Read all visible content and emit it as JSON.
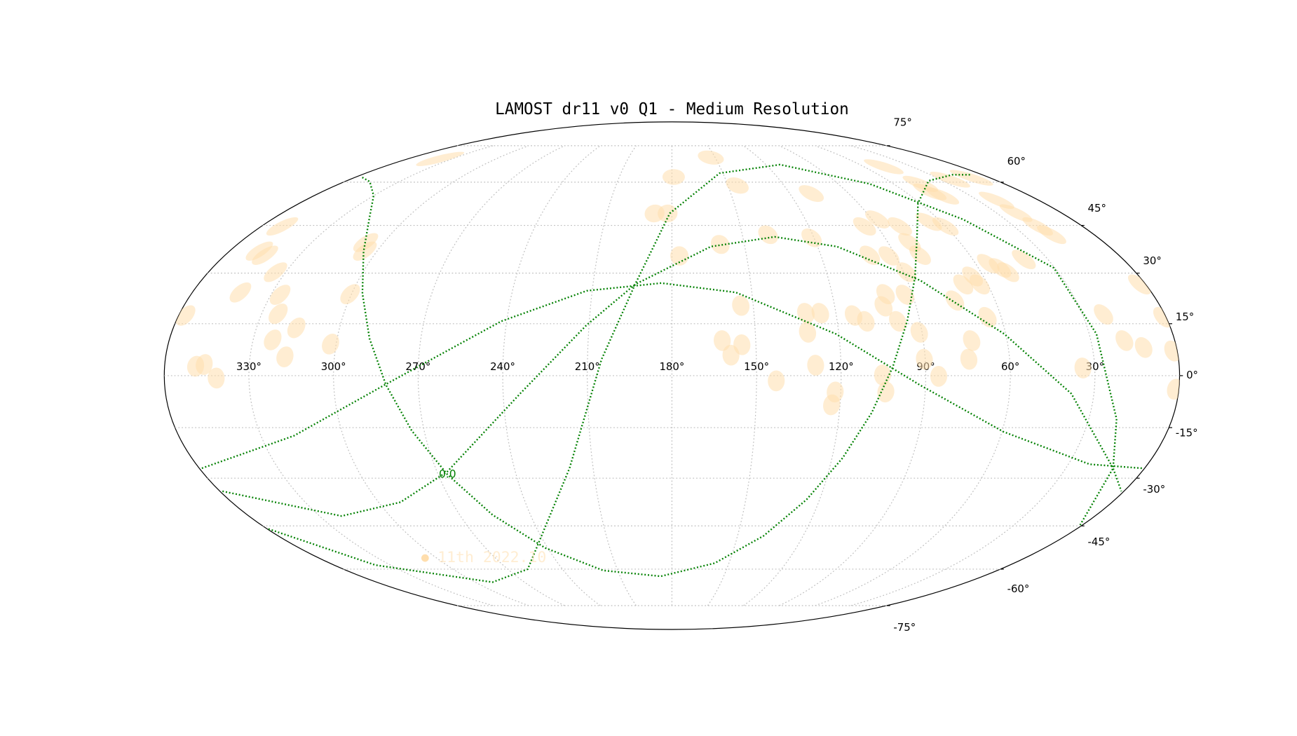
{
  "chart_data": {
    "type": "mollweide",
    "title": "LAMOST dr11 v0 Q1 - Medium Resolution",
    "xlim": [
      360,
      0
    ],
    "ylim": [
      -90,
      90
    ],
    "xticks": [
      {
        "value": 330,
        "label": "330°"
      },
      {
        "value": 300,
        "label": "300°"
      },
      {
        "value": 270,
        "label": "270°"
      },
      {
        "value": 240,
        "label": "240°"
      },
      {
        "value": 210,
        "label": "210°"
      },
      {
        "value": 180,
        "label": "180°"
      },
      {
        "value": 150,
        "label": "150°"
      },
      {
        "value": 120,
        "label": "120°"
      },
      {
        "value": 90,
        "label": "90°"
      },
      {
        "value": 60,
        "label": "60°"
      },
      {
        "value": 30,
        "label": "30°"
      }
    ],
    "yticks": [
      {
        "value": -75,
        "label": "-75°"
      },
      {
        "value": -60,
        "label": "-60°"
      },
      {
        "value": -45,
        "label": "-45°"
      },
      {
        "value": -30,
        "label": "-30°"
      },
      {
        "value": -15,
        "label": "-15°"
      },
      {
        "value": 0,
        "label": "0°"
      },
      {
        "value": 15,
        "label": "15°"
      },
      {
        "value": 30,
        "label": "30°"
      },
      {
        "value": 45,
        "label": "45°"
      },
      {
        "value": 60,
        "label": "60°"
      },
      {
        "value": 75,
        "label": "75°"
      }
    ],
    "grid": true,
    "legend": "lower left",
    "series": [
      {
        "name": "11th 2022.10",
        "color": "#ffdead",
        "x": [
          357.6,
          349,
          346,
          341.6,
          342,
          348,
          344,
          334,
          326.6,
          324,
          323,
          317.6,
          315.6,
          351,
          302,
          300.5,
          307.6,
          305,
          179,
          153,
          145,
          188,
          182,
          160,
          177,
          139,
          109,
          121,
          154.6,
          162,
          155,
          159,
          143,
          131,
          125.7,
          131.2,
          129,
          122,
          123,
          113.7,
          109.6,
          95.5,
          87.5,
          100.3,
          92.7,
          100,
          102,
          92.8,
          98,
          91,
          105.3,
          104,
          90.3,
          85.4,
          81,
          89,
          80,
          80,
          47.2,
          44,
          60,
          65.4,
          75,
          69.3,
          64.2,
          63,
          55,
          51.5,
          49.4,
          72.7,
          74.5,
          65,
          39.6,
          18,
          19.5,
          21,
          20.6,
          24.4,
          10,
          22.3,
          18,
          11.7,
          1.5,
          1,
          2.2,
          1.2,
          34.2,
          338.5,
          47.4,
          45.3
        ],
        "y": [
          17.4,
          2.7,
          3.2,
          -0.7,
          24.2,
          36.8,
          35.5,
          30.3,
          23.5,
          17.9,
          10.3,
          5.4,
          13.8,
          44.7,
          9.1,
          23.7,
          39.5,
          36.8,
          62,
          69.8,
          58.8,
          49,
          49,
          38.9,
          35.3,
          42,
          55.9,
          41,
          20.3,
          10.1,
          8.9,
          5.9,
          -1.5,
          18.1,
          18.1,
          12.5,
          3,
          -4.7,
          -8.4,
          17.4,
          15.7,
          44.7,
          47,
          35.5,
          35.3,
          23.7,
          20.1,
          23.5,
          15.7,
          12.5,
          0.2,
          -4.7,
          4.7,
          -0.2,
          39.5,
          30.3,
          44.7,
          35.5,
          56.5,
          55,
          44.7,
          46.2,
          21.8,
          26.6,
          29,
          26.6,
          32.9,
          31.6,
          30.3,
          10.1,
          4.7,
          16.9,
          34.2,
          42,
          44.7,
          49.1,
          53.5,
          61,
          61.7,
          17.7,
          10.1,
          8.1,
          7.1,
          16.9,
          26.6,
          -3.9,
          2.2,
          69.2,
          66,
          59.4
        ]
      }
    ],
    "lines": [
      {
        "color": "green",
        "x": [
          355.9,
          346.2,
          330,
          318.1,
          305.3,
          296,
          288.4,
          281.5,
          274.5,
          266.4,
          256.1,
          241.2,
          218,
          186.5,
          157.5,
          138.1,
          125.3,
          116,
          108.4,
          101.6,
          94.5,
          86.4,
          76.1,
          61.2,
          38,
          17.4,
          6.5
        ],
        "y": [
          61.8,
          60.2,
          55.1,
          48.3,
          36.6,
          23.9,
          10.7,
          -2.6,
          -15.9,
          -28.9,
          -41.4,
          -52.4,
          -60.5,
          -62.7,
          -57.8,
          -48.3,
          -36.6,
          -23.9,
          -10.7,
          2.6,
          15.9,
          28.9,
          41.4,
          52.4,
          60.5,
          62.8,
          62.8
        ]
      },
      {
        "color": "green",
        "x": [
          359,
          318,
          282,
          242,
          212,
          184,
          156,
          121,
          92,
          59.5,
          22,
          1
        ],
        "y": [
          -27,
          -17.4,
          -2.7,
          15.7,
          24.7,
          27,
          24.2,
          12,
          -2.7,
          -16.2,
          -25.8,
          -27
        ]
      },
      {
        "color": "green",
        "x": [
          359,
          320.6,
          291,
          266,
          234,
          211,
          194,
          164,
          136.5,
          112,
          85,
          60.5,
          38,
          12,
          1
        ],
        "y": [
          -34,
          -41.8,
          -37.4,
          -28,
          -5.2,
          14.5,
          26.6,
          38.2,
          41.3,
          38.2,
          27.8,
          12,
          -5.2,
          -27,
          -34
        ]
      },
      {
        "color": "green",
        "x": [
          359.5,
          338,
          289.5,
          259,
          219,
          205,
          194,
          181,
          152,
          111,
          73,
          49,
          30.4,
          27.4,
          20,
          12,
          1
        ],
        "y": [
          -46,
          -58.5,
          -65,
          -60,
          -27,
          4.7,
          26.6,
          49,
          63.4,
          66.8,
          59.4,
          47,
          31.6,
          12,
          -12.5,
          -27,
          -44.7
        ]
      }
    ],
    "annotations": [
      {
        "text": "0.0",
        "x": 266.4,
        "y": -28.9,
        "color": "green"
      }
    ]
  }
}
